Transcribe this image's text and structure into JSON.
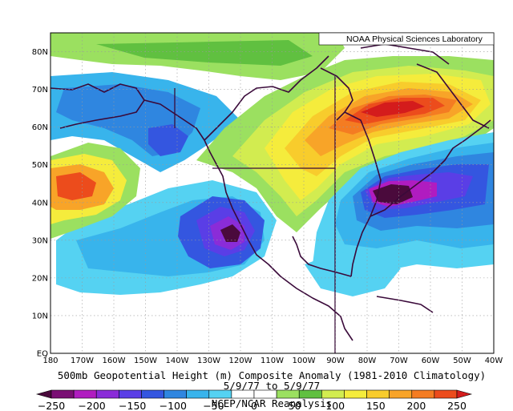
{
  "credit": "NOAA Physical Sciences Laboratory",
  "title": "500mb Geopotential Height (m) Composite Anomaly (1981-2010 Climatology)",
  "date_range": "5/9/77 to 5/9/77",
  "source": "NCEP/NCAR Reanalysis",
  "lat_labels": [
    "80N",
    "70N",
    "60N",
    "50N",
    "40N",
    "30N",
    "20N",
    "10N",
    "EQ"
  ],
  "lon_labels": [
    "180",
    "170W",
    "160W",
    "150W",
    "140W",
    "130W",
    "120W",
    "110W",
    "100W",
    "90W",
    "80W",
    "70W",
    "60W",
    "50W",
    "40W"
  ],
  "colorbar": {
    "ticks": [
      "−250",
      "−200",
      "−150",
      "−100",
      "−50",
      "0",
      "50",
      "100",
      "150",
      "200",
      "250"
    ],
    "colors": [
      "#4a0a3c",
      "#7a0f74",
      "#b01cc0",
      "#8a2cd8",
      "#5a3ee6",
      "#3456e0",
      "#2f86e0",
      "#38b4ec",
      "#55d2f2",
      "#ffffff",
      "#ffffff",
      "#9be060",
      "#60c040",
      "#d2ec50",
      "#f5ec3c",
      "#f8cc2c",
      "#f8a428",
      "#f47c22",
      "#ec4c1c",
      "#d41c1c"
    ]
  },
  "map_data": {
    "type": "filled-contour map",
    "variable": "500mb geopotential height anomaly",
    "units": "m",
    "lat_range": [
      0,
      85
    ],
    "lon_range": [
      -180,
      -40
    ]
  }
}
